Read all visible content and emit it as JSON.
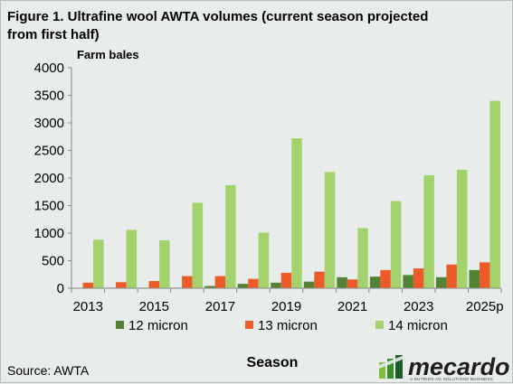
{
  "figure": {
    "title_line1": "Figure 1. Ultrafine wool AWTA volumes (current season projected",
    "title_line2": "from first half)",
    "source": "Source: AWTA",
    "brand_name": "mecardo",
    "brand_tagline": "A NUTRIEN AG SOLUTIONS BUSINESS"
  },
  "chart_data": {
    "type": "bar",
    "title": "Figure 1. Ultrafine wool AWTA volumes (current season projected from first half)",
    "ylabel": "Farm bales",
    "xlabel": "Season",
    "ylim": [
      0,
      4000
    ],
    "yticks": [
      0,
      500,
      1000,
      1500,
      2000,
      2500,
      3000,
      3500,
      4000
    ],
    "categories": [
      "2013",
      "2014",
      "2015",
      "2016",
      "2017",
      "2018",
      "2019",
      "2020",
      "2021",
      "2022",
      "2023",
      "2024",
      "2025p"
    ],
    "category_tick_labels": [
      "2013",
      "",
      "2015",
      "",
      "2017",
      "",
      "2019",
      "",
      "2021",
      "",
      "2023",
      "",
      "2025p"
    ],
    "grid": false,
    "legend_position": "bottom",
    "series": [
      {
        "name": "12 micron",
        "color": "#548235",
        "values": [
          5,
          10,
          10,
          10,
          40,
          80,
          100,
          120,
          200,
          210,
          240,
          200,
          330
        ]
      },
      {
        "name": "13 micron",
        "color": "#ed5c28",
        "values": [
          100,
          110,
          130,
          220,
          220,
          170,
          280,
          300,
          160,
          330,
          360,
          430,
          470
        ]
      },
      {
        "name": "14 micron",
        "color": "#a3d16b",
        "values": [
          880,
          1060,
          870,
          1550,
          1870,
          1010,
          2720,
          2110,
          1090,
          1580,
          2050,
          2150,
          3400
        ]
      }
    ]
  }
}
